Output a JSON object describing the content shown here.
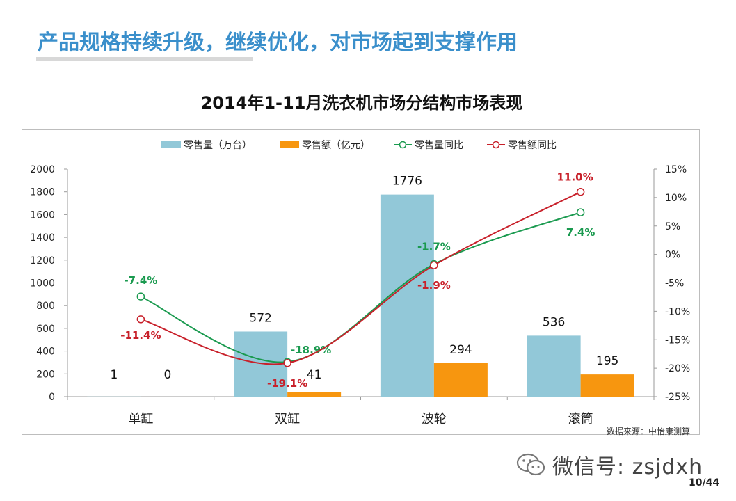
{
  "slide": {
    "title": "产品规格持续升级，继续优化，对市场起到支撑作用",
    "page_number": "10/44",
    "source_note": "数据来源：中怡康测算",
    "watermark": "微信号: zsjdxh"
  },
  "colors": {
    "title": "#3a8fcb",
    "bar_volume": "#92c8d8",
    "bar_value": "#f7960f",
    "line_volume": "#1a9a4f",
    "line_value": "#c8202a"
  },
  "chart_data": {
    "type": "bar",
    "title": "2014年1-11月洗衣机市场分结构市场表现",
    "categories": [
      "单缸",
      "双缸",
      "波轮",
      "滚筒"
    ],
    "series": [
      {
        "name": "零售量（万台）",
        "kind": "bar",
        "axis": "left",
        "values": [
          1,
          572,
          1776,
          536
        ],
        "labels": [
          "1",
          "572",
          "1776",
          "536"
        ]
      },
      {
        "name": "零售额（亿元）",
        "kind": "bar",
        "axis": "left",
        "values": [
          0,
          41,
          294,
          195
        ],
        "labels": [
          "0",
          "41",
          "294",
          "195"
        ]
      },
      {
        "name": "零售量同比",
        "kind": "line",
        "axis": "right",
        "values": [
          -7.4,
          -18.9,
          -1.7,
          7.4
        ],
        "labels": [
          "-7.4%",
          "-18.9%",
          "-1.7%",
          "7.4%"
        ]
      },
      {
        "name": "零售额同比",
        "kind": "line",
        "axis": "right",
        "values": [
          -11.4,
          -19.1,
          -1.9,
          11.0
        ],
        "labels": [
          "-11.4%",
          "-19.1%",
          "-1.9%",
          "11.0%"
        ]
      }
    ],
    "y_left": {
      "min": 0,
      "max": 2000,
      "step": 200,
      "ticks": [
        "0",
        "200",
        "400",
        "600",
        "800",
        "1000",
        "1200",
        "1400",
        "1600",
        "1800",
        "2000"
      ]
    },
    "y_right": {
      "min": -25,
      "max": 15,
      "step": 5,
      "ticks": [
        "-25%",
        "-20%",
        "-15%",
        "-10%",
        "-5%",
        "0%",
        "5%",
        "10%",
        "15%"
      ]
    },
    "legend_position": "top",
    "grid": false
  }
}
